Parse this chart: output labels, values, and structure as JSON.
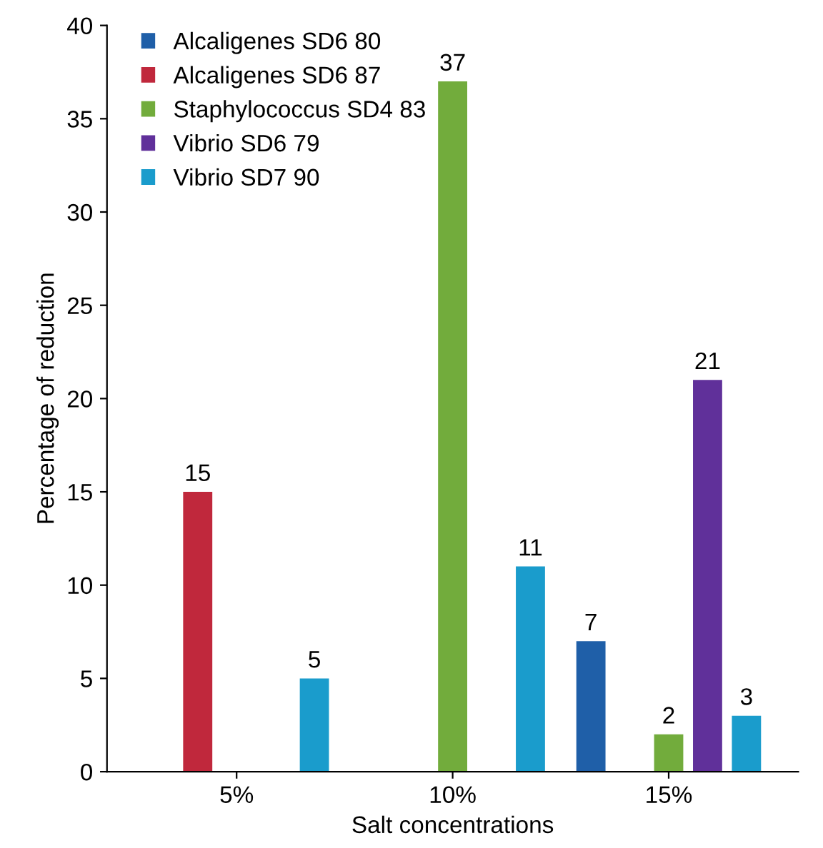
{
  "chart_data": {
    "type": "bar",
    "xlabel": "Salt concentrations",
    "ylabel": "Percentage of reduction",
    "categories": [
      "5%",
      "10%",
      "15%"
    ],
    "series": [
      {
        "name": "Alcaligenes SD6 80",
        "color": "#1f5fa8",
        "values": [
          null,
          null,
          7
        ]
      },
      {
        "name": "Alcaligenes SD6 87",
        "color": "#c0283c",
        "values": [
          15,
          null,
          null
        ]
      },
      {
        "name": "Staphylococcus SD4 83",
        "color": "#72ac3c",
        "values": [
          null,
          37,
          2
        ]
      },
      {
        "name": "Vibrio SD6 79",
        "color": "#60309a",
        "values": [
          null,
          null,
          21
        ]
      },
      {
        "name": "Vibrio SD7 90",
        "color": "#1a9ccc",
        "values": [
          5,
          11,
          3
        ]
      }
    ],
    "ylim": [
      0,
      40
    ],
    "yticks": [
      0,
      5,
      10,
      15,
      20,
      25,
      30,
      35,
      40
    ],
    "data_labels": true,
    "legend": "top left",
    "grid": false
  }
}
